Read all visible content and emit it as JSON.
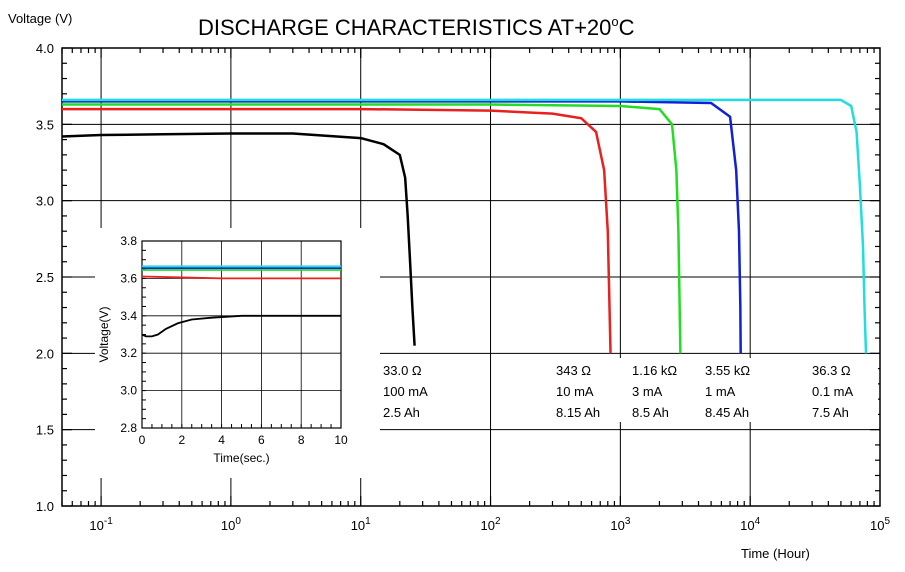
{
  "chart_data": [
    {
      "type": "line",
      "title": "DISCHARGE CHARACTERISTICS AT+20",
      "title_superscript": "o",
      "title_suffix": "C",
      "ylabel": "Voltage (V)",
      "xlabel": "Time (Hour)",
      "x_scale": "log",
      "xlim": [
        0.05,
        100000
      ],
      "ylim": [
        1.0,
        4.0
      ],
      "x_ticks": [
        {
          "base": "10",
          "exp": "-1",
          "value": 0.1
        },
        {
          "base": "10",
          "exp": "0",
          "value": 1
        },
        {
          "base": "10",
          "exp": "1",
          "value": 10
        },
        {
          "base": "10",
          "exp": "2",
          "value": 100
        },
        {
          "base": "10",
          "exp": "3",
          "value": 1000
        },
        {
          "base": "10",
          "exp": "4",
          "value": 10000
        },
        {
          "base": "10",
          "exp": "5",
          "value": 100000
        }
      ],
      "y_ticks": [
        "1.0",
        "1.5",
        "2.0",
        "2.5",
        "3.0",
        "3.5",
        "4.0"
      ],
      "grid": true,
      "series": [
        {
          "color": "#000000",
          "x": [
            0.05,
            0.1,
            0.3,
            1,
            3,
            10,
            15,
            20,
            22,
            23,
            24,
            25,
            26
          ],
          "y": [
            3.42,
            3.43,
            3.435,
            3.44,
            3.44,
            3.41,
            3.37,
            3.3,
            3.15,
            2.9,
            2.6,
            2.3,
            2.05
          ]
        },
        {
          "color": "#e8201e",
          "x": [
            0.05,
            1,
            10,
            100,
            300,
            500,
            650,
            750,
            800,
            820,
            840
          ],
          "y": [
            3.6,
            3.6,
            3.6,
            3.59,
            3.57,
            3.54,
            3.45,
            3.2,
            2.8,
            2.4,
            2.0
          ]
        },
        {
          "color": "#22dd22",
          "x": [
            0.05,
            1,
            100,
            1000,
            2000,
            2500,
            2700,
            2800,
            2850,
            2900
          ],
          "y": [
            3.63,
            3.63,
            3.63,
            3.62,
            3.6,
            3.5,
            3.2,
            2.8,
            2.4,
            2.0
          ]
        },
        {
          "color": "#1020d8",
          "x": [
            0.05,
            1,
            100,
            1000,
            5000,
            7000,
            7800,
            8200,
            8400,
            8450
          ],
          "y": [
            3.65,
            3.65,
            3.65,
            3.65,
            3.64,
            3.55,
            3.2,
            2.8,
            2.3,
            2.0
          ]
        },
        {
          "color": "#22dddd",
          "x": [
            0.05,
            1,
            100,
            10000,
            50000,
            60000,
            66000,
            70000,
            74000,
            76000,
            78000
          ],
          "y": [
            3.66,
            3.66,
            3.66,
            3.66,
            3.66,
            3.62,
            3.45,
            3.1,
            2.7,
            2.3,
            2.0
          ]
        }
      ],
      "annotations": [
        {
          "resistance": "33.0 Ω",
          "current": "100 mA",
          "capacity": "2.5 Ah"
        },
        {
          "resistance": "343 Ω",
          "current": "10 mA",
          "capacity": "8.15 Ah"
        },
        {
          "resistance": "1.16 kΩ",
          "current": "3 mA",
          "capacity": "8.5 Ah"
        },
        {
          "resistance": "3.55 kΩ",
          "current": "1 mA",
          "capacity": "8.45 Ah"
        },
        {
          "resistance": "36.3 Ω",
          "current": "0.1 mA",
          "capacity": "7.5 Ah"
        }
      ]
    },
    {
      "type": "line",
      "xlabel": "Time(sec.)",
      "ylabel": "Voltage(V)",
      "xlim": [
        0,
        10
      ],
      "ylim": [
        2.8,
        3.8
      ],
      "x_ticks": [
        "0",
        "2",
        "4",
        "6",
        "8",
        "10"
      ],
      "y_ticks": [
        "2.8",
        "3.0",
        "3.2",
        "3.4",
        "3.6",
        "3.8"
      ],
      "grid": true,
      "series": [
        {
          "color": "#000000",
          "x": [
            0,
            0.2,
            0.5,
            0.8,
            1.2,
            1.8,
            2.5,
            3.5,
            5,
            7,
            10
          ],
          "y": [
            3.3,
            3.29,
            3.29,
            3.3,
            3.33,
            3.36,
            3.38,
            3.39,
            3.4,
            3.4,
            3.4
          ]
        },
        {
          "color": "#e8201e",
          "x": [
            0,
            2,
            4,
            6,
            8,
            10
          ],
          "y": [
            3.61,
            3.605,
            3.6,
            3.6,
            3.6,
            3.6
          ]
        },
        {
          "color": "#22dd22",
          "x": [
            0,
            2,
            4,
            6,
            8,
            10
          ],
          "y": [
            3.645,
            3.645,
            3.645,
            3.645,
            3.645,
            3.645
          ]
        },
        {
          "color": "#1020d8",
          "x": [
            0,
            2,
            4,
            6,
            8,
            10
          ],
          "y": [
            3.655,
            3.655,
            3.655,
            3.655,
            3.655,
            3.655
          ]
        },
        {
          "color": "#22dddd",
          "x": [
            0,
            2,
            4,
            6,
            8,
            10
          ],
          "y": [
            3.665,
            3.665,
            3.665,
            3.665,
            3.665,
            3.665
          ]
        }
      ]
    }
  ]
}
